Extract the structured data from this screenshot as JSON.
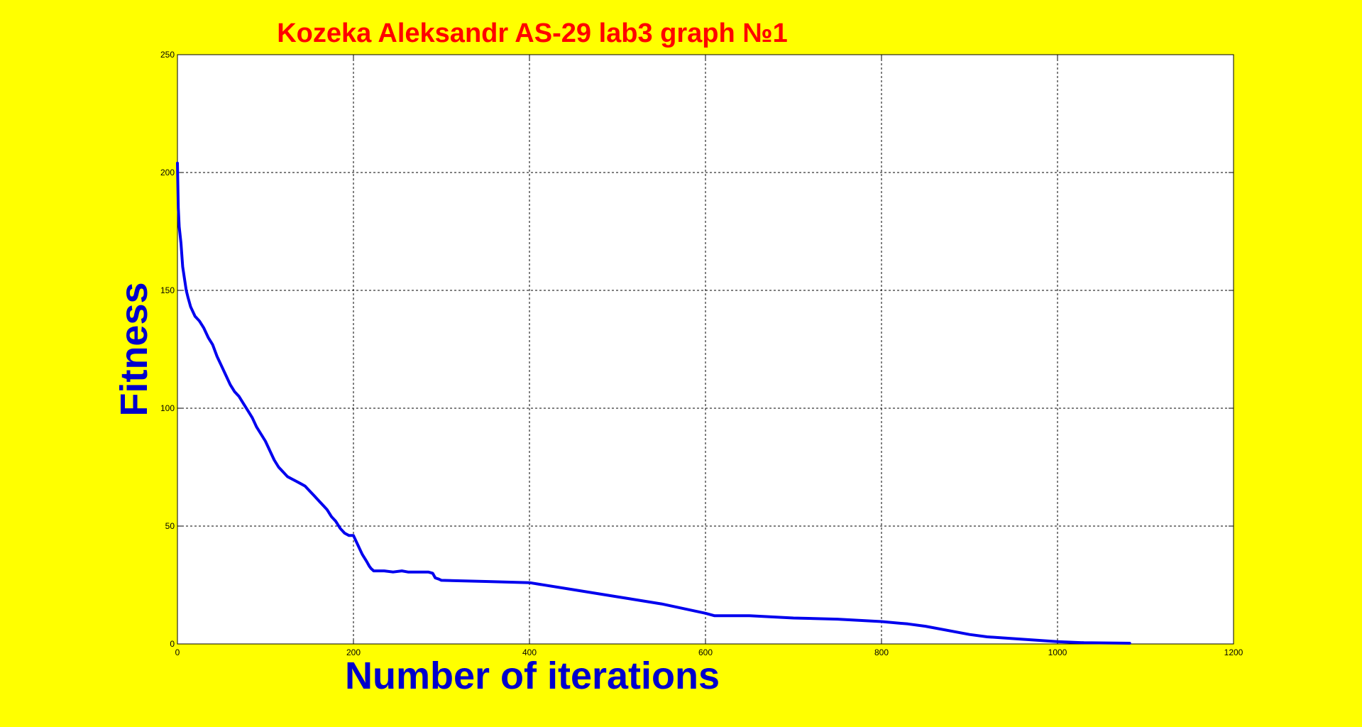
{
  "colors": {
    "background": "#ffff00",
    "plot_area": "#ffffff",
    "title": "#ff0000",
    "axis_labels": "#0000cc",
    "series": "#0000ee",
    "grid": "#000000"
  },
  "chart_data": {
    "type": "line",
    "title": "Kozeka Aleksandr AS-29 lab3 graph №1",
    "xlabel": "Number of iterations",
    "ylabel": "Fitness",
    "xlim": [
      0,
      1200
    ],
    "ylim": [
      0,
      250
    ],
    "xticks": [
      0,
      200,
      400,
      600,
      800,
      1000,
      1200
    ],
    "yticks": [
      0,
      50,
      100,
      150,
      200,
      250
    ],
    "grid": true,
    "legend": "none",
    "series": [
      {
        "x": [
          0,
          1,
          2,
          4,
          6,
          8,
          10,
          12,
          15,
          20,
          25,
          30,
          35,
          40,
          45,
          50,
          55,
          60,
          65,
          70,
          75,
          80,
          85,
          90,
          95,
          100,
          105,
          110,
          115,
          120,
          125,
          130,
          135,
          140,
          145,
          150,
          155,
          160,
          165,
          170,
          175,
          180,
          185,
          190,
          195,
          200,
          205,
          210,
          215,
          218,
          220,
          223,
          226,
          228,
          230,
          235,
          245,
          255,
          262,
          265,
          270,
          275,
          280,
          285,
          290,
          293,
          297,
          300,
          350,
          400,
          450,
          500,
          550,
          600,
          610,
          650,
          700,
          750,
          800,
          830,
          850,
          900,
          920,
          960,
          1000,
          1030,
          1082
        ],
        "y": [
          204,
          185,
          177,
          170,
          160,
          155,
          150,
          147,
          143,
          139,
          137,
          134,
          130,
          127,
          122,
          118,
          114,
          110,
          107,
          105,
          102,
          99,
          96,
          92,
          89,
          86,
          82,
          78,
          75,
          73,
          71,
          70,
          69,
          68,
          67,
          65,
          63,
          61,
          59,
          57,
          54,
          52,
          49,
          47,
          46,
          46,
          42,
          38,
          35,
          33,
          32,
          31,
          31,
          31,
          31,
          31,
          30.5,
          31,
          30.5,
          30.5,
          30.5,
          30.5,
          30.5,
          30.5,
          30,
          28,
          27.5,
          27,
          26.5,
          26,
          23,
          20,
          17,
          13,
          12,
          12,
          11,
          10.5,
          9.5,
          8.5,
          7.5,
          4,
          3,
          2,
          1,
          0.5,
          0.3
        ]
      }
    ]
  }
}
